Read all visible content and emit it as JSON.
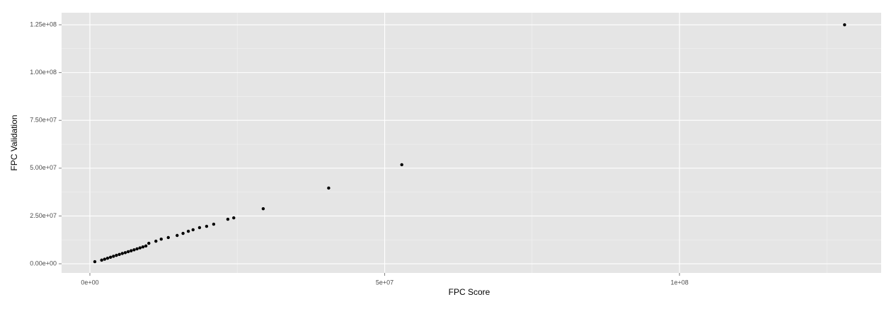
{
  "chart_data": {
    "type": "scatter",
    "x_label": "FPC Score",
    "y_label": "FPC Validation",
    "x": [
      840000,
      2000000,
      2500000,
      3000000,
      3500000,
      4000000,
      4500000,
      5000000,
      5500000,
      6000000,
      6500000,
      7000000,
      7500000,
      8000000,
      8500000,
      9000000,
      9500000,
      10000000,
      11200000,
      12100000,
      13300000,
      14800000,
      15800000,
      16700000,
      17500000,
      18600000,
      19800000,
      21000000,
      23400000,
      24400000,
      29400000,
      40500000,
      52900000,
      128000000
    ],
    "values": [
      1100000,
      1900000,
      2400000,
      2900000,
      3400000,
      3900000,
      4400000,
      4900000,
      5400000,
      5800000,
      6300000,
      6800000,
      7300000,
      7800000,
      8300000,
      8800000,
      9300000,
      10700000,
      11800000,
      12900000,
      13700000,
      14800000,
      15900000,
      17000000,
      17800000,
      18900000,
      19600000,
      20700000,
      23300000,
      24000000,
      28800000,
      39600000,
      51800000,
      125000000
    ],
    "color": "#000000",
    "xlim": [
      -4800000,
      134200000
    ],
    "ylim": [
      -4800000,
      131300000
    ],
    "xticks": [
      {
        "value": 0,
        "label": "0e+00"
      },
      {
        "value": 50000000,
        "label": "5e+07"
      },
      {
        "value": 100000000,
        "label": "1e+08"
      }
    ],
    "x_minor_ticks": [
      25000000,
      75000000,
      125000000
    ],
    "yticks": [
      {
        "value": 0,
        "label": "0.00e+00"
      },
      {
        "value": 25000000,
        "label": "2.50e+07"
      },
      {
        "value": 50000000,
        "label": "5.00e+07"
      },
      {
        "value": 75000000,
        "label": "7.50e+07"
      },
      {
        "value": 100000000,
        "label": "1.00e+08"
      },
      {
        "value": 125000000,
        "label": "1.25e+08"
      }
    ],
    "y_minor_ticks": [
      12500000,
      37500000,
      62500000,
      87500000,
      112500000
    ],
    "grid": true
  }
}
